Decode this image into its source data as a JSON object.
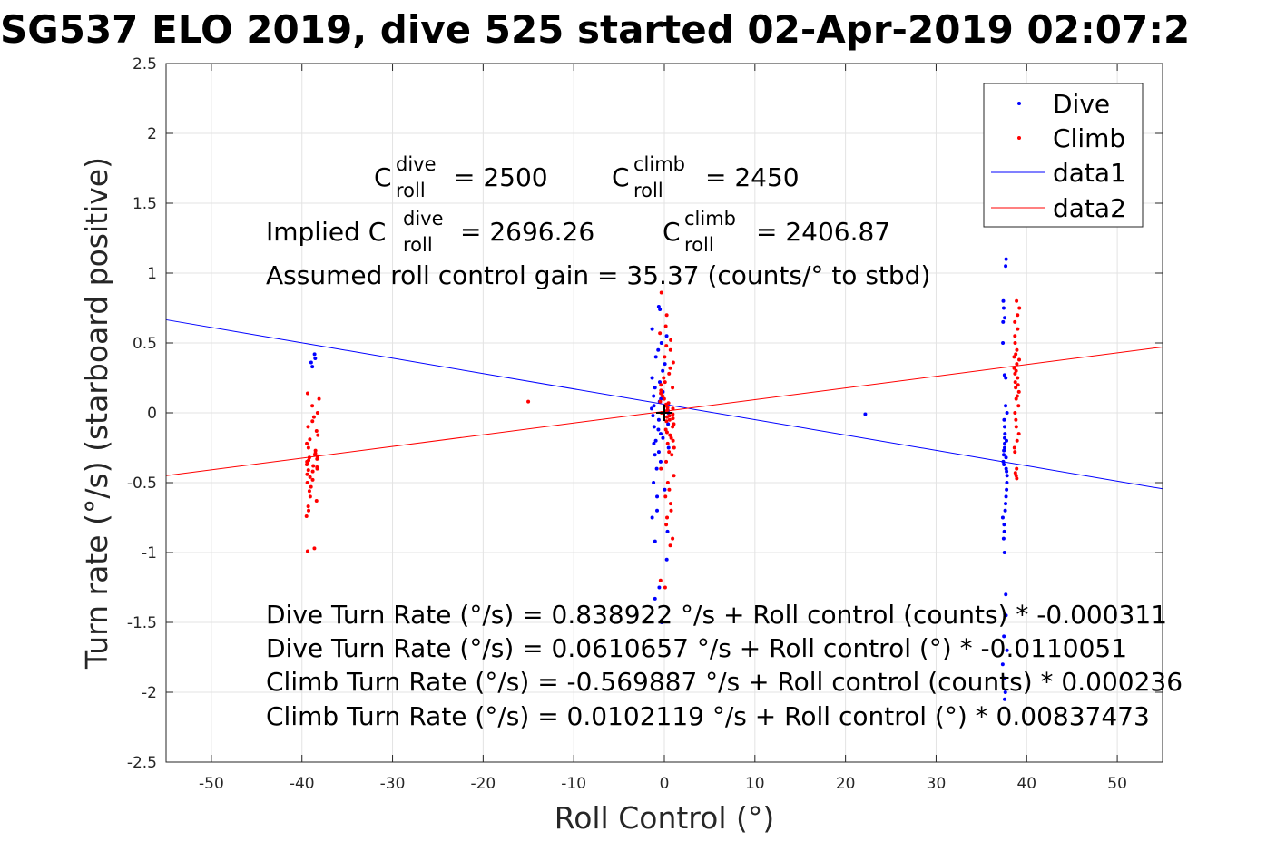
{
  "chart_data": {
    "type": "scatter",
    "title": "SG537 ELO 2019, dive 525 started 02-Apr-2019 02:07:2",
    "xlabel": "Roll Control (°)",
    "ylabel": "Turn rate (°/s) (starboard positive)",
    "xlim": [
      -55,
      55
    ],
    "ylim": [
      -2.5,
      2.5
    ],
    "xticks": [
      -50,
      -40,
      -30,
      -20,
      -10,
      0,
      10,
      20,
      30,
      40,
      50
    ],
    "yticks": [
      -2.5,
      -2,
      -1.5,
      -1,
      -0.5,
      0,
      0.5,
      1,
      1.5,
      2,
      2.5
    ],
    "grid": true,
    "legend_position": "top-right",
    "series": [
      {
        "name": "Dive",
        "kind": "points",
        "color": "#0000ff",
        "clusters": [
          {
            "x_center": -38.6,
            "x_spread": 0.5,
            "y_values": [
              0.42,
              0.39,
              0.36,
              0.33
            ]
          },
          {
            "x_center": -0.5,
            "x_spread": 1.0,
            "y_values": [
              0.76,
              0.74,
              0.6,
              0.55,
              0.5,
              0.45,
              0.4,
              0.35,
              0.3,
              0.25,
              0.22,
              0.18,
              0.15,
              0.12,
              0.1,
              0.08,
              0.05,
              0.03,
              0.02,
              0.0,
              -0.02,
              -0.05,
              -0.08,
              -0.1,
              -0.12,
              -0.15,
              -0.18,
              -0.2,
              -0.22,
              -0.25,
              -0.28,
              -0.3,
              -0.35,
              -0.4,
              -0.5,
              -0.55,
              -0.6,
              -0.7,
              -0.75,
              -0.85,
              -0.92,
              -1.05,
              -1.25,
              -1.33,
              -1.5
            ]
          },
          {
            "x_center": 22.2,
            "x_spread": 0.1,
            "y_values": [
              -0.01
            ]
          },
          {
            "x_center": 37.6,
            "x_spread": 0.25,
            "y_values": [
              1.1,
              1.05,
              0.8,
              0.75,
              0.68,
              0.65,
              0.5,
              0.27,
              0.25,
              0.05,
              0.0,
              -0.05,
              -0.1,
              -0.15,
              -0.18,
              -0.2,
              -0.22,
              -0.25,
              -0.27,
              -0.3,
              -0.32,
              -0.35,
              -0.37,
              -0.4,
              -0.42,
              -0.45,
              -0.5,
              -0.55,
              -0.6,
              -0.65,
              -0.7,
              -0.75,
              -0.8,
              -0.85,
              -0.9,
              -1.0,
              -1.3,
              -1.45,
              -1.6,
              -1.7,
              -1.8,
              -1.9,
              -2.0,
              -2.05
            ]
          }
        ]
      },
      {
        "name": "Climb",
        "kind": "points",
        "color": "#ff0000",
        "clusters": [
          {
            "x_center": -38.8,
            "x_spread": 0.7,
            "y_values": [
              0.14,
              0.1,
              0.05,
              0.0,
              -0.03,
              -0.06,
              -0.1,
              -0.13,
              -0.16,
              -0.19,
              -0.22,
              -0.25,
              -0.27,
              -0.29,
              -0.3,
              -0.31,
              -0.32,
              -0.33,
              -0.34,
              -0.35,
              -0.36,
              -0.37,
              -0.38,
              -0.39,
              -0.4,
              -0.41,
              -0.42,
              -0.44,
              -0.46,
              -0.48,
              -0.5,
              -0.53,
              -0.56,
              -0.6,
              -0.63,
              -0.67,
              -0.7,
              -0.74,
              -0.97,
              -0.99
            ]
          },
          {
            "x_center": -15.0,
            "x_spread": 0.1,
            "y_values": [
              0.08
            ]
          },
          {
            "x_center": 0.3,
            "x_spread": 0.8,
            "y_values": [
              0.86,
              0.7,
              0.62,
              0.57,
              0.52,
              0.48,
              0.45,
              0.4,
              0.36,
              0.32,
              0.28,
              0.25,
              0.22,
              0.2,
              0.18,
              0.16,
              0.14,
              0.12,
              0.1,
              0.08,
              0.07,
              0.06,
              0.05,
              0.04,
              0.03,
              0.02,
              0.01,
              0.0,
              -0.01,
              -0.02,
              -0.03,
              -0.04,
              -0.05,
              -0.06,
              -0.08,
              -0.1,
              -0.12,
              -0.14,
              -0.16,
              -0.18,
              -0.2,
              -0.22,
              -0.25,
              -0.28,
              -0.3,
              -0.35,
              -0.4,
              -0.45,
              -0.5,
              -0.55,
              -0.6,
              -0.65,
              -0.7,
              -0.75,
              -0.8,
              -0.9,
              -0.95,
              -1.2,
              -1.25
            ]
          },
          {
            "x_center": 38.9,
            "x_spread": 0.3,
            "y_values": [
              0.8,
              0.75,
              0.7,
              0.65,
              0.6,
              0.55,
              0.5,
              0.45,
              0.42,
              0.4,
              0.38,
              0.35,
              0.32,
              0.3,
              0.28,
              0.25,
              0.22,
              0.2,
              0.18,
              0.15,
              0.12,
              0.1,
              0.05,
              0.0,
              -0.05,
              -0.1,
              -0.15,
              -0.2,
              -0.25,
              -0.28,
              -0.4,
              -0.43,
              -0.45,
              -0.47
            ]
          }
        ]
      },
      {
        "name": "data1",
        "kind": "line",
        "color": "#0000ff",
        "x": [
          -55,
          55
        ],
        "y": [
          0.666,
          -0.544
        ]
      },
      {
        "name": "data2",
        "kind": "line",
        "color": "#ff0000",
        "x": [
          -55,
          55
        ],
        "y": [
          -0.45,
          0.471
        ]
      }
    ],
    "annotations": {
      "c_roll_dive_prefix": "C",
      "c_roll_sup_dive": "dive",
      "c_roll_sub": "roll",
      "c_roll_dive_value": "= 2500",
      "c_roll_climb_prefix": "C",
      "c_roll_sup_climb": "climb",
      "c_roll_climb_value": "= 2450",
      "implied_label": "Implied C",
      "implied_dive_value": "= 2696.26",
      "implied_climb_prefix": "C",
      "implied_climb_value": "= 2406.87",
      "gain_line": "Assumed roll control gain = 35.37 (counts/° to stbd)",
      "fit_line_1": "Dive Turn Rate (°/s) = 0.838922 °/s + Roll control (counts) * -0.000311",
      "fit_line_2": "Dive Turn Rate (°/s) = 0.0610657 °/s + Roll control (°) * -0.0110051",
      "fit_line_3": "Climb Turn Rate (°/s) = -0.569887 °/s + Roll control (counts) * 0.000236",
      "fit_line_4": "Climb Turn Rate (°/s) = 0.0102119 °/s + Roll control (°) * 0.00837473"
    }
  }
}
